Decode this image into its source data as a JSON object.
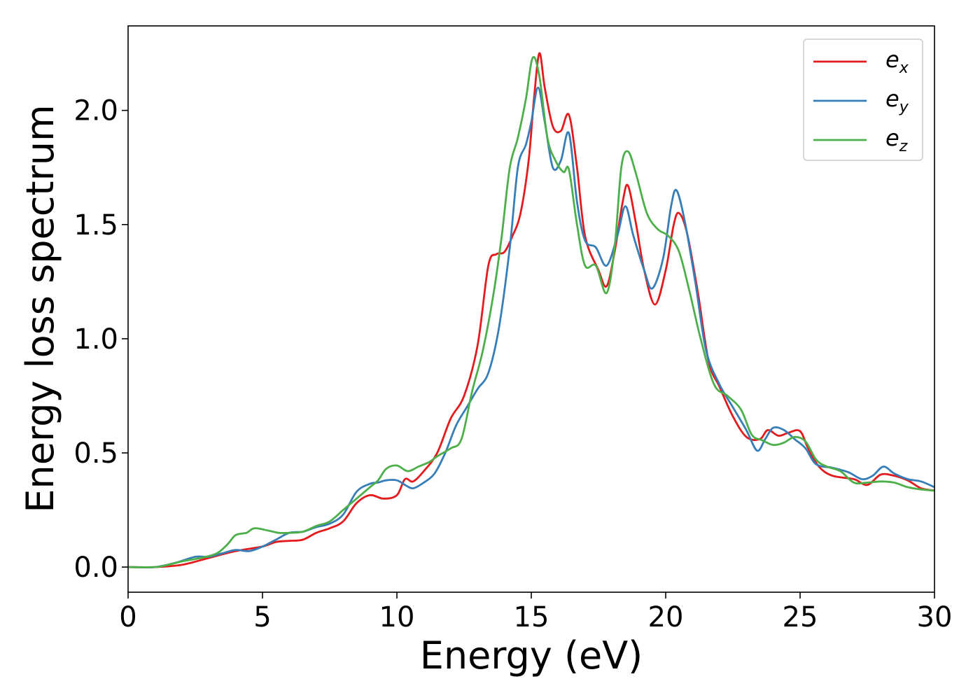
{
  "chart_data": {
    "type": "line",
    "title": "",
    "xlabel": "Energy (eV)",
    "ylabel": "Energy loss spectrum",
    "xlim": [
      0,
      30
    ],
    "ylim": [
      -0.11,
      2.37
    ],
    "xticks": [
      0,
      5,
      10,
      15,
      20,
      25,
      30
    ],
    "xtick_labels": [
      "0",
      "5",
      "10",
      "15",
      "20",
      "25",
      "30"
    ],
    "yticks": [
      0.0,
      0.5,
      1.0,
      1.5,
      2.0
    ],
    "ytick_labels": [
      "0.0",
      "0.5",
      "1.0",
      "1.5",
      "2.0"
    ],
    "grid": false,
    "legend": {
      "placement": "top-right"
    },
    "series": [
      {
        "name": "ex",
        "label_base": "e",
        "label_sub": "x",
        "color": "#e41a1c",
        "points": [
          [
            0,
            0
          ],
          [
            1,
            0.0
          ],
          [
            2,
            0.01
          ],
          [
            3,
            0.04
          ],
          [
            4,
            0.07
          ],
          [
            5,
            0.09
          ],
          [
            5.5,
            0.11
          ],
          [
            6,
            0.115
          ],
          [
            6.5,
            0.12
          ],
          [
            7,
            0.15
          ],
          [
            7.5,
            0.17
          ],
          [
            8,
            0.2
          ],
          [
            8.5,
            0.28
          ],
          [
            9,
            0.315
          ],
          [
            9.5,
            0.3
          ],
          [
            10,
            0.315
          ],
          [
            10.3,
            0.385
          ],
          [
            10.6,
            0.375
          ],
          [
            11,
            0.42
          ],
          [
            11.5,
            0.5
          ],
          [
            12,
            0.65
          ],
          [
            12.5,
            0.75
          ],
          [
            13,
            0.97
          ],
          [
            13.4,
            1.32
          ],
          [
            13.7,
            1.37
          ],
          [
            14,
            1.38
          ],
          [
            14.3,
            1.45
          ],
          [
            14.6,
            1.55
          ],
          [
            14.9,
            1.78
          ],
          [
            15.1,
            2.05
          ],
          [
            15.3,
            2.25
          ],
          [
            15.5,
            2.1
          ],
          [
            15.8,
            1.93
          ],
          [
            16.1,
            1.91
          ],
          [
            16.4,
            1.98
          ],
          [
            16.7,
            1.75
          ],
          [
            17,
            1.45
          ],
          [
            17.5,
            1.3
          ],
          [
            17.8,
            1.23
          ],
          [
            18.1,
            1.38
          ],
          [
            18.4,
            1.6
          ],
          [
            18.6,
            1.67
          ],
          [
            18.9,
            1.5
          ],
          [
            19.2,
            1.3
          ],
          [
            19.6,
            1.15
          ],
          [
            20,
            1.3
          ],
          [
            20.3,
            1.5
          ],
          [
            20.5,
            1.55
          ],
          [
            20.8,
            1.46
          ],
          [
            21.2,
            1.2
          ],
          [
            21.6,
            0.9
          ],
          [
            22,
            0.79
          ],
          [
            22.5,
            0.66
          ],
          [
            23,
            0.57
          ],
          [
            23.5,
            0.56
          ],
          [
            23.8,
            0.6
          ],
          [
            24.2,
            0.575
          ],
          [
            24.6,
            0.59
          ],
          [
            25,
            0.595
          ],
          [
            25.3,
            0.52
          ],
          [
            25.7,
            0.44
          ],
          [
            26.2,
            0.4
          ],
          [
            27,
            0.385
          ],
          [
            27.5,
            0.36
          ],
          [
            28,
            0.405
          ],
          [
            28.5,
            0.4
          ],
          [
            29,
            0.38
          ],
          [
            29.5,
            0.345
          ],
          [
            30,
            0.335
          ]
        ]
      },
      {
        "name": "ey",
        "label_base": "e",
        "label_sub": "y",
        "color": "#377eb8",
        "points": [
          [
            0,
            0
          ],
          [
            1,
            0.0
          ],
          [
            1.8,
            0.02
          ],
          [
            2.5,
            0.045
          ],
          [
            3,
            0.045
          ],
          [
            3.5,
            0.06
          ],
          [
            4,
            0.075
          ],
          [
            4.5,
            0.07
          ],
          [
            5,
            0.09
          ],
          [
            5.5,
            0.12
          ],
          [
            6,
            0.15
          ],
          [
            6.5,
            0.155
          ],
          [
            7,
            0.175
          ],
          [
            7.5,
            0.19
          ],
          [
            8,
            0.23
          ],
          [
            8.5,
            0.33
          ],
          [
            9,
            0.365
          ],
          [
            9.3,
            0.37
          ],
          [
            9.6,
            0.38
          ],
          [
            10,
            0.38
          ],
          [
            10.3,
            0.36
          ],
          [
            10.6,
            0.345
          ],
          [
            11,
            0.37
          ],
          [
            11.4,
            0.41
          ],
          [
            11.8,
            0.5
          ],
          [
            12.2,
            0.62
          ],
          [
            12.6,
            0.7
          ],
          [
            13,
            0.78
          ],
          [
            13.4,
            0.85
          ],
          [
            13.8,
            1.05
          ],
          [
            14.2,
            1.4
          ],
          [
            14.5,
            1.75
          ],
          [
            14.8,
            1.85
          ],
          [
            15,
            1.95
          ],
          [
            15.25,
            2.1
          ],
          [
            15.5,
            1.95
          ],
          [
            15.8,
            1.75
          ],
          [
            16.1,
            1.78
          ],
          [
            16.4,
            1.9
          ],
          [
            16.7,
            1.6
          ],
          [
            17,
            1.43
          ],
          [
            17.4,
            1.4
          ],
          [
            17.8,
            1.32
          ],
          [
            18.2,
            1.45
          ],
          [
            18.5,
            1.58
          ],
          [
            18.8,
            1.45
          ],
          [
            19.2,
            1.3
          ],
          [
            19.5,
            1.22
          ],
          [
            19.9,
            1.35
          ],
          [
            20.2,
            1.58
          ],
          [
            20.4,
            1.65
          ],
          [
            20.7,
            1.52
          ],
          [
            21.1,
            1.25
          ],
          [
            21.5,
            0.95
          ],
          [
            22,
            0.8
          ],
          [
            22.5,
            0.7
          ],
          [
            23,
            0.6
          ],
          [
            23.4,
            0.51
          ],
          [
            23.7,
            0.56
          ],
          [
            24,
            0.61
          ],
          [
            24.4,
            0.6
          ],
          [
            24.8,
            0.56
          ],
          [
            25.2,
            0.52
          ],
          [
            25.6,
            0.45
          ],
          [
            26.2,
            0.435
          ],
          [
            26.8,
            0.415
          ],
          [
            27.3,
            0.385
          ],
          [
            27.7,
            0.4
          ],
          [
            28.1,
            0.44
          ],
          [
            28.5,
            0.41
          ],
          [
            29,
            0.385
          ],
          [
            29.5,
            0.375
          ],
          [
            30,
            0.35
          ]
        ]
      },
      {
        "name": "ez",
        "label_base": "e",
        "label_sub": "z",
        "color": "#4daf4a",
        "points": [
          [
            0,
            0
          ],
          [
            1,
            0.0
          ],
          [
            1.5,
            0.01
          ],
          [
            2,
            0.025
          ],
          [
            2.7,
            0.04
          ],
          [
            3.3,
            0.06
          ],
          [
            3.7,
            0.1
          ],
          [
            4,
            0.14
          ],
          [
            4.4,
            0.15
          ],
          [
            4.7,
            0.17
          ],
          [
            5.2,
            0.16
          ],
          [
            5.6,
            0.15
          ],
          [
            6,
            0.15
          ],
          [
            6.5,
            0.155
          ],
          [
            7,
            0.18
          ],
          [
            7.5,
            0.2
          ],
          [
            8,
            0.25
          ],
          [
            8.5,
            0.3
          ],
          [
            9,
            0.35
          ],
          [
            9.3,
            0.38
          ],
          [
            9.6,
            0.43
          ],
          [
            10,
            0.445
          ],
          [
            10.4,
            0.42
          ],
          [
            10.8,
            0.44
          ],
          [
            11.2,
            0.46
          ],
          [
            11.5,
            0.485
          ],
          [
            12,
            0.52
          ],
          [
            12.4,
            0.56
          ],
          [
            12.8,
            0.77
          ],
          [
            13.2,
            0.95
          ],
          [
            13.6,
            1.2
          ],
          [
            13.9,
            1.45
          ],
          [
            14.2,
            1.75
          ],
          [
            14.5,
            1.88
          ],
          [
            14.8,
            2.05
          ],
          [
            15.05,
            2.23
          ],
          [
            15.3,
            2.15
          ],
          [
            15.6,
            1.88
          ],
          [
            15.9,
            1.78
          ],
          [
            16.2,
            1.73
          ],
          [
            16.4,
            1.74
          ],
          [
            16.7,
            1.5
          ],
          [
            17,
            1.32
          ],
          [
            17.4,
            1.32
          ],
          [
            17.8,
            1.2
          ],
          [
            18.1,
            1.4
          ],
          [
            18.35,
            1.75
          ],
          [
            18.6,
            1.82
          ],
          [
            18.9,
            1.72
          ],
          [
            19.3,
            1.55
          ],
          [
            19.7,
            1.48
          ],
          [
            20.1,
            1.45
          ],
          [
            20.5,
            1.38
          ],
          [
            20.9,
            1.2
          ],
          [
            21.3,
            1.0
          ],
          [
            21.8,
            0.8
          ],
          [
            22.3,
            0.75
          ],
          [
            22.8,
            0.69
          ],
          [
            23.2,
            0.58
          ],
          [
            23.6,
            0.555
          ],
          [
            24,
            0.535
          ],
          [
            24.4,
            0.545
          ],
          [
            24.8,
            0.57
          ],
          [
            25.2,
            0.55
          ],
          [
            25.6,
            0.47
          ],
          [
            26,
            0.44
          ],
          [
            26.5,
            0.42
          ],
          [
            27,
            0.37
          ],
          [
            27.5,
            0.37
          ],
          [
            28,
            0.375
          ],
          [
            28.5,
            0.37
          ],
          [
            29,
            0.35
          ],
          [
            29.5,
            0.34
          ],
          [
            30,
            0.335
          ]
        ]
      }
    ]
  }
}
